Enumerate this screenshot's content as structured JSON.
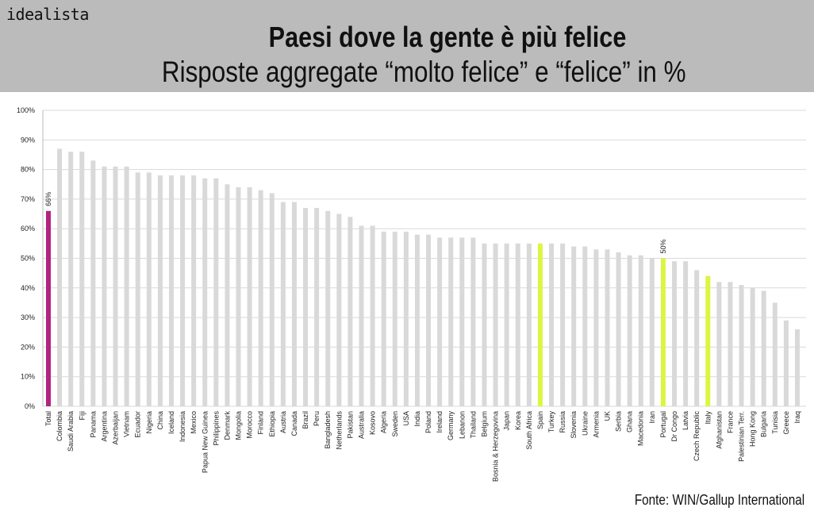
{
  "logo": "idealista",
  "header": {
    "title": "Paesi dove la gente è più felice",
    "subtitle": "Risposte aggregate “molto felice” e “felice” in %"
  },
  "source": "Fonte: WIN/Gallup International",
  "colors": {
    "default": "#d9d9d9",
    "total": "#b3237f",
    "highlight": "#dcf542"
  },
  "chart_data": {
    "type": "bar",
    "title": "Paesi dove la gente è più felice",
    "subtitle": "Risposte aggregate “molto felice” e “felice” in %",
    "xlabel": "",
    "ylabel": "",
    "ylim": [
      0,
      100
    ],
    "yticks": [
      "0%",
      "10%",
      "20%",
      "30%",
      "40%",
      "50%",
      "60%",
      "70%",
      "80%",
      "90%",
      "100%"
    ],
    "grid": true,
    "categories": [
      "Total",
      "Colombia",
      "Saudi Arabia",
      "Fiji",
      "Panama",
      "Argentina",
      "Azerbaijan",
      "Vietnam",
      "Ecuador",
      "Nigeria",
      "China",
      "Iceland",
      "Indonesia",
      "Mexico",
      "Papua New Guinea",
      "Philippines",
      "Denmark",
      "Mongolia",
      "Morocco",
      "Finland",
      "Ethiopia",
      "Austria",
      "Canada",
      "Brazil",
      "Peru",
      "Bangladesh",
      "Netherlands",
      "Pakistan",
      "Australia",
      "Kosovo",
      "Algeria",
      "Sweden",
      "USA",
      "India",
      "Poland",
      "Ireland",
      "Germany",
      "Lebanon",
      "Thailand",
      "Belgium",
      "Bosnia & Herzegovina",
      "Japan",
      "Korea",
      "South Africa",
      "Spain",
      "Turkey",
      "Russia",
      "Slovenia",
      "Ukraine",
      "Armenia",
      "UK",
      "Serbia",
      "Ghana",
      "Macedonia",
      "Iran",
      "Portugal",
      "Dr Congo",
      "Latvia",
      "Czech Republic",
      "Italy",
      "Afghanistan",
      "France",
      "Palestinian Terr.",
      "Hong Kong",
      "Bulgaria",
      "Tunisia",
      "Greece",
      "Iraq"
    ],
    "values": [
      66,
      87,
      86,
      86,
      83,
      81,
      81,
      81,
      79,
      79,
      78,
      78,
      78,
      78,
      77,
      77,
      75,
      74,
      74,
      73,
      72,
      69,
      69,
      67,
      67,
      66,
      65,
      64,
      61,
      61,
      59,
      59,
      59,
      58,
      58,
      57,
      57,
      57,
      57,
      55,
      55,
      55,
      55,
      55,
      55,
      55,
      55,
      54,
      54,
      53,
      53,
      52,
      51,
      51,
      50,
      50,
      49,
      49,
      46,
      44,
      42,
      42,
      41,
      40,
      39,
      35,
      29,
      26
    ],
    "highlighted": {
      "Total": "total",
      "Spain": "highlight",
      "Portugal": "highlight",
      "Italy": "highlight"
    },
    "data_labels": {
      "Total": "66%",
      "Portugal": "50%"
    }
  }
}
